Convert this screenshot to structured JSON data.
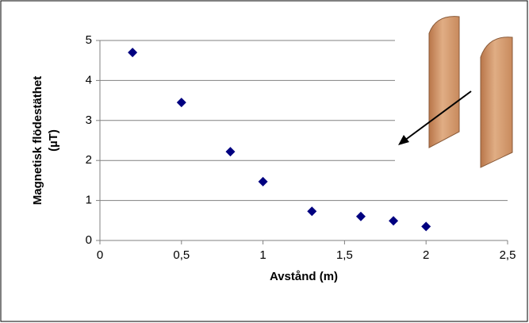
{
  "chart_data": {
    "type": "scatter",
    "xlabel": "Avstånd (m)",
    "ylabel": [
      "Magnetisk flödestäthet",
      "(µT)"
    ],
    "x": [
      0.2,
      0.5,
      0.8,
      1.0,
      1.3,
      1.6,
      1.8,
      2.0
    ],
    "series": [
      {
        "color": "#000080",
        "values": [
          4.7,
          3.45,
          2.22,
          1.47,
          0.73,
          0.6,
          0.49,
          0.35
        ]
      }
    ],
    "xlim": [
      0,
      2.5
    ],
    "xticks": [
      0,
      {
        "value": 0.5,
        "label": "0,5"
      },
      1,
      {
        "value": 1.5,
        "label": "1,5"
      },
      2,
      {
        "value": 2.5,
        "label": "2,5"
      }
    ],
    "ylim": [
      0,
      5
    ],
    "yticks": [
      0,
      1,
      2,
      3,
      4,
      5
    ],
    "grid": true
  }
}
